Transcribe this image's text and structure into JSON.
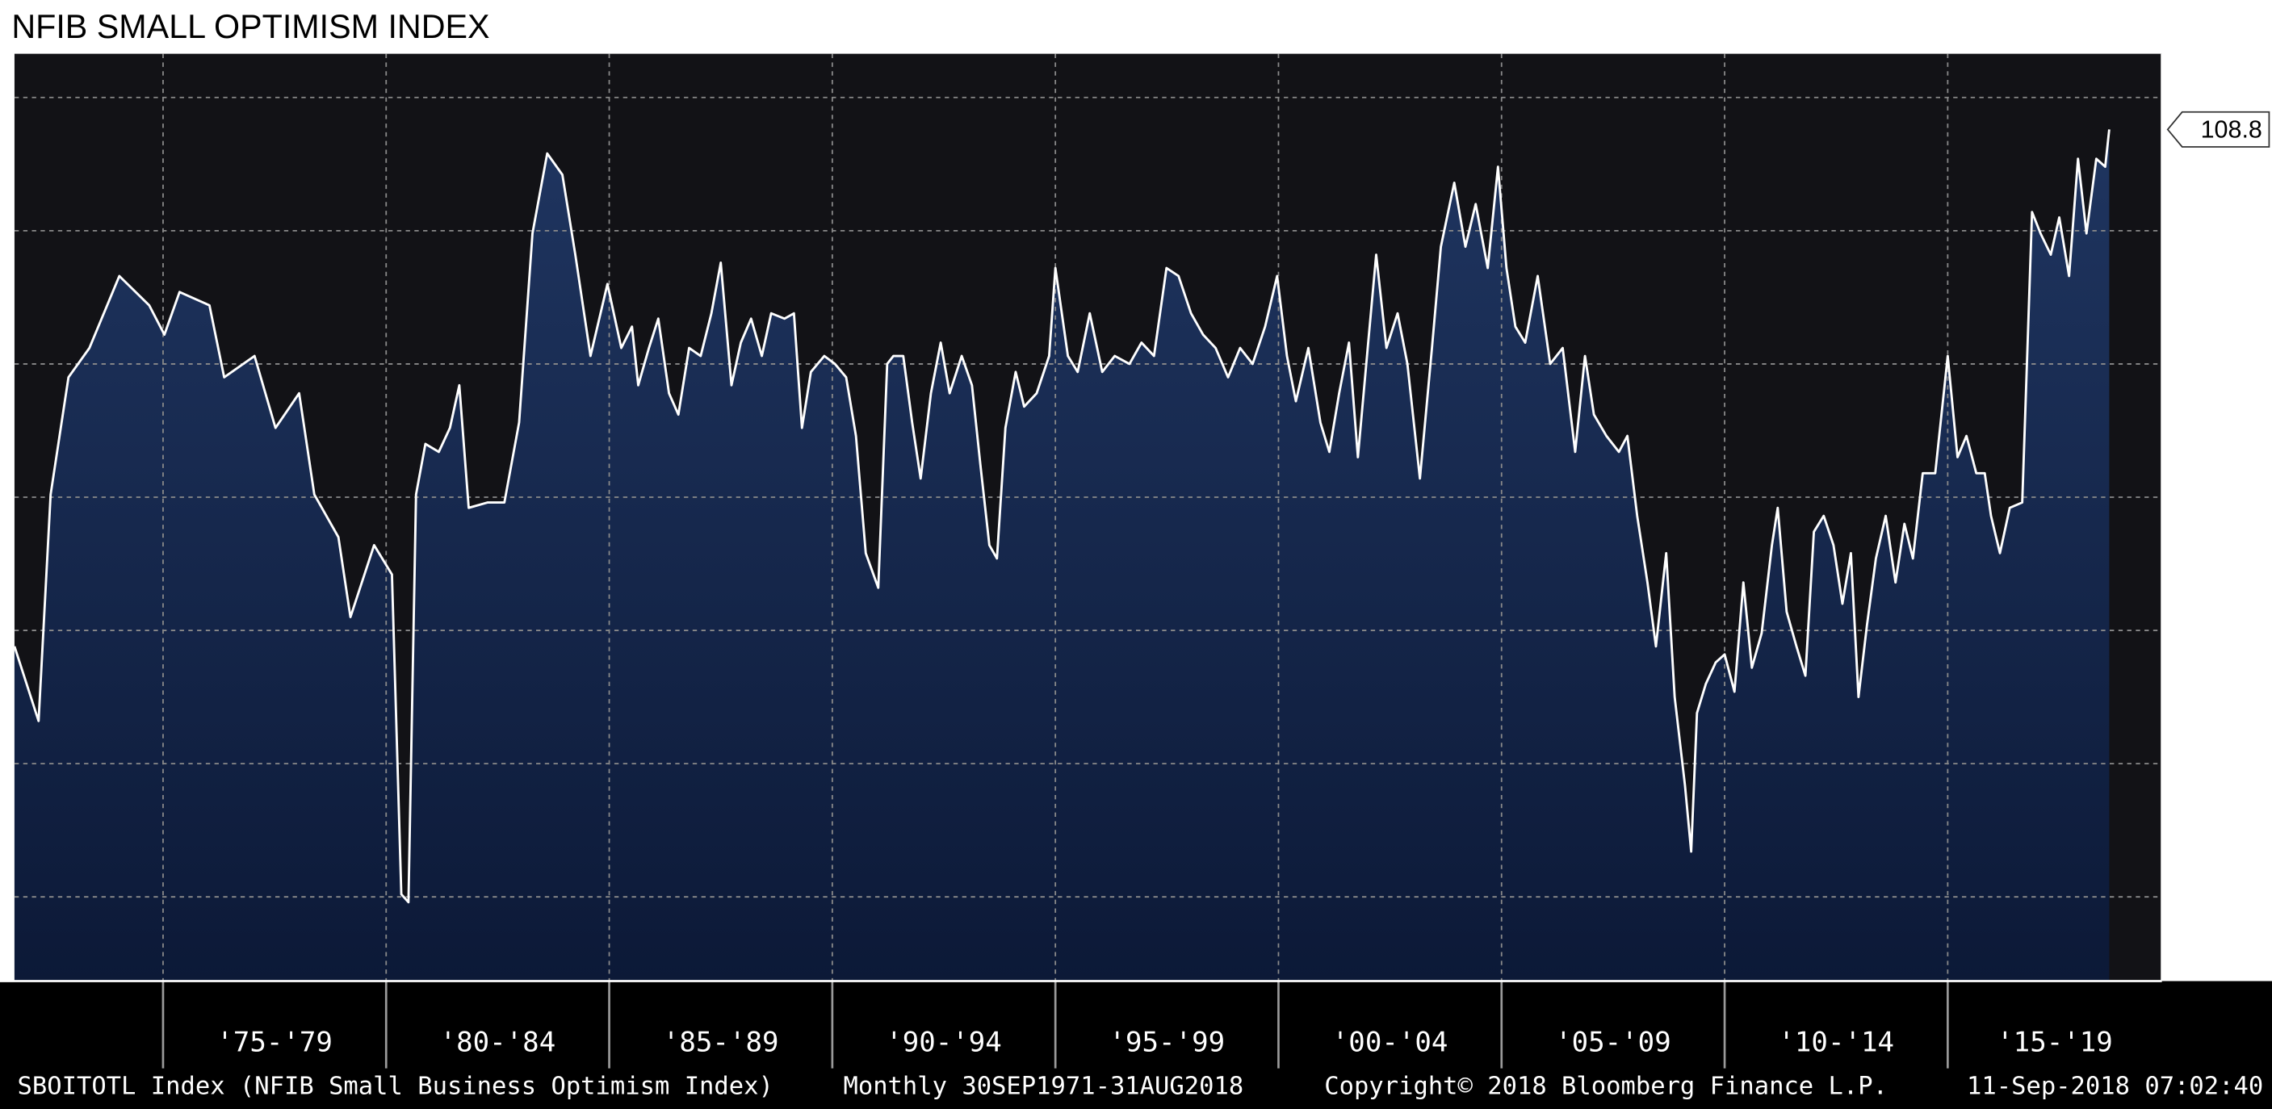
{
  "chart_data": {
    "type": "area",
    "title": "NFIB SMALL OPTIMISM INDEX",
    "x": [
      1971.67,
      1972.21,
      1972.48,
      1972.88,
      1973.35,
      1974.02,
      1974.69,
      1975.03,
      1975.37,
      1976.04,
      1976.37,
      1977.05,
      1977.52,
      1978.05,
      1978.39,
      1978.93,
      1979.2,
      1979.73,
      1980.13,
      1980.34,
      1980.5,
      1980.67,
      1980.88,
      1981.18,
      1981.43,
      1981.64,
      1981.85,
      1982.27,
      1982.65,
      1982.98,
      1983.28,
      1983.61,
      1983.95,
      1984.24,
      1984.58,
      1984.96,
      1985.27,
      1985.51,
      1985.65,
      1985.89,
      1986.1,
      1986.34,
      1986.55,
      1986.79,
      1987.05,
      1987.29,
      1987.5,
      1987.74,
      1987.95,
      1988.18,
      1988.42,
      1988.63,
      1988.93,
      1989.14,
      1989.32,
      1989.52,
      1989.82,
      1990.06,
      1990.31,
      1990.53,
      1990.75,
      1991.03,
      1991.23,
      1991.37,
      1991.59,
      1991.79,
      1991.98,
      1992.21,
      1992.43,
      1992.63,
      1992.9,
      1993.13,
      1993.32,
      1993.52,
      1993.69,
      1993.88,
      1994.11,
      1994.3,
      1994.58,
      1994.86,
      1995.0,
      1995.28,
      1995.5,
      1995.77,
      1996.05,
      1996.33,
      1996.66,
      1996.93,
      1997.21,
      1997.49,
      1997.76,
      1998.04,
      1998.31,
      1998.59,
      1998.87,
      1999.14,
      1999.42,
      1999.7,
      1999.97,
      2000.19,
      2000.39,
      2000.67,
      2000.94,
      2001.14,
      2001.36,
      2001.58,
      2001.78,
      2002.0,
      2002.19,
      2002.42,
      2002.67,
      2002.89,
      2003.17,
      2003.44,
      2003.64,
      2003.94,
      2004.19,
      2004.42,
      2004.69,
      2004.92,
      2005.11,
      2005.31,
      2005.53,
      2005.81,
      2006.09,
      2006.37,
      2006.65,
      2006.87,
      2007.07,
      2007.35,
      2007.63,
      2007.82,
      2008.04,
      2008.27,
      2008.46,
      2008.69,
      2008.88,
      2009.11,
      2009.25,
      2009.38,
      2009.58,
      2009.8,
      2010.0,
      2010.22,
      2010.42,
      2010.61,
      2010.83,
      2011.06,
      2011.19,
      2011.39,
      2011.61,
      2011.81,
      2012.0,
      2012.22,
      2012.44,
      2012.64,
      2012.83,
      2013.0,
      2013.19,
      2013.39,
      2013.61,
      2013.83,
      2014.03,
      2014.22,
      2014.44,
      2014.72,
      2015.0,
      2015.22,
      2015.42,
      2015.64,
      2015.83,
      2015.97,
      2016.17,
      2016.39,
      2016.67,
      2016.89,
      2017.08,
      2017.31,
      2017.5,
      2017.72,
      2017.92,
      2018.11,
      2018.33,
      2018.53,
      2018.62
    ],
    "values": [
      89.4,
      86.6,
      95.1,
      99.5,
      100.6,
      103.3,
      102.2,
      101.1,
      102.7,
      102.2,
      99.5,
      100.3,
      97.6,
      98.9,
      95.1,
      93.5,
      90.5,
      93.2,
      92.1,
      80.1,
      79.8,
      95.1,
      97.0,
      96.7,
      97.6,
      99.2,
      94.6,
      94.8,
      94.8,
      97.8,
      104.9,
      107.9,
      107.1,
      104.1,
      100.3,
      103.0,
      100.6,
      101.4,
      99.2,
      100.6,
      101.7,
      98.9,
      98.1,
      100.6,
      100.3,
      101.9,
      103.8,
      99.2,
      100.8,
      101.7,
      100.3,
      101.9,
      101.7,
      101.9,
      97.6,
      99.7,
      100.3,
      100.0,
      99.5,
      97.3,
      92.9,
      91.6,
      100.0,
      100.3,
      100.3,
      97.8,
      95.7,
      98.9,
      100.8,
      98.9,
      100.3,
      99.2,
      96.2,
      93.2,
      92.7,
      97.6,
      99.7,
      98.4,
      98.9,
      100.3,
      103.6,
      100.3,
      99.7,
      101.9,
      99.7,
      100.3,
      100.0,
      100.8,
      100.3,
      103.6,
      103.3,
      101.9,
      101.1,
      100.6,
      99.5,
      100.6,
      100.0,
      101.4,
      103.3,
      100.3,
      98.6,
      100.6,
      97.8,
      96.7,
      98.9,
      100.8,
      96.5,
      100.6,
      104.1,
      100.6,
      101.9,
      100.0,
      95.7,
      100.6,
      104.4,
      106.8,
      104.4,
      106.0,
      103.6,
      107.4,
      103.6,
      101.4,
      100.8,
      103.3,
      100.0,
      100.6,
      96.7,
      100.3,
      98.1,
      97.3,
      96.7,
      97.3,
      94.3,
      91.8,
      89.4,
      92.9,
      87.5,
      84.2,
      81.7,
      86.9,
      88.0,
      88.8,
      89.1,
      87.7,
      91.8,
      88.6,
      89.9,
      93.2,
      94.6,
      90.7,
      89.4,
      88.3,
      93.7,
      94.3,
      93.2,
      91.0,
      92.9,
      87.5,
      90.2,
      92.7,
      94.3,
      91.8,
      94.0,
      92.7,
      95.9,
      95.9,
      100.3,
      96.5,
      97.3,
      95.9,
      95.9,
      94.3,
      92.9,
      94.6,
      94.8,
      105.7,
      104.9,
      104.1,
      105.5,
      103.3,
      107.7,
      104.9,
      107.7,
      107.4,
      108.8
    ],
    "color": "#ffffff",
    "xlim": [
      1971.67,
      2019.8
    ],
    "xticks": [
      {
        "value": 1975,
        "label": "'75-'79"
      },
      {
        "value": 1980,
        "label": "'80-'84"
      },
      {
        "value": 1985,
        "label": "'85-'89"
      },
      {
        "value": 1990,
        "label": "'90-'94"
      },
      {
        "value": 1995,
        "label": "'95-'99"
      },
      {
        "value": 2000,
        "label": "'00-'04"
      },
      {
        "value": 2005,
        "label": "'05-'09"
      },
      {
        "value": 2010,
        "label": "'10-'14"
      },
      {
        "value": 2015,
        "label": "'15-'19"
      }
    ],
    "ylim": [
      76.84,
      111.64
    ],
    "yticks": [
      80,
      85,
      90,
      95,
      100,
      105,
      110
    ],
    "grid": true,
    "footer": {
      "source": "SBOITOTL Index (NFIB Small Business Optimism Index)",
      "frequency": "Monthly 30SEP1971-31AUG2018",
      "copyright": "Copyright© 2018 Bloomberg Finance L.P.",
      "timestamp": "11-Sep-2018 07:02:40"
    }
  }
}
